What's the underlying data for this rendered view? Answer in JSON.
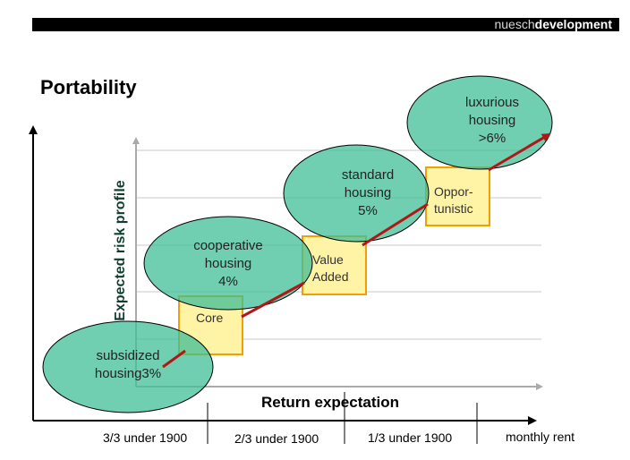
{
  "header": {
    "brand_light": "nuesch",
    "brand_bold": "development"
  },
  "title": "Portability",
  "axes": {
    "y_label": "Expected risk profile",
    "x_label": "Return expectation",
    "x_categories": [
      "3/3 under 1900",
      "2/3 under 1900",
      "1/3 under 1900",
      "monthly rent"
    ]
  },
  "boxes": [
    {
      "label": "Core"
    },
    {
      "label_line1": "Value",
      "label_line2": "Added"
    },
    {
      "label_line1": "Oppor-",
      "label_line2": "tunistic"
    }
  ],
  "ellipses": [
    {
      "line1": "subsidized",
      "line2": "housing3%"
    },
    {
      "line1": "cooperative",
      "line2": "housing",
      "line3": "4%"
    },
    {
      "line1": "standard",
      "line2": "housing",
      "line3": "5%"
    },
    {
      "line1": "luxurious",
      "line2": "housing",
      "line3": ">6%"
    }
  ],
  "colors": {
    "ellipse_fill": "#3fbf95",
    "box_fill": "#fff3a6",
    "box_border": "#f0a000",
    "arrow": "#b01818",
    "grid": "#c8c8c8"
  }
}
